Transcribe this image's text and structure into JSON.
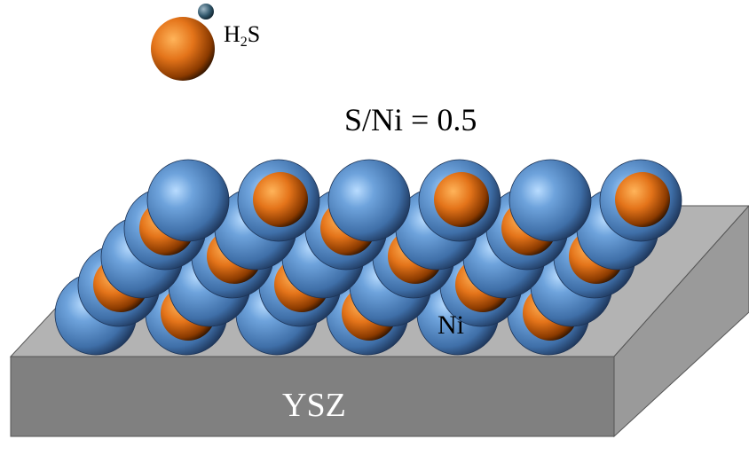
{
  "molecule": {
    "label_main": "H",
    "label_sub": "2",
    "label_tail": "S"
  },
  "coverage_label": "S/Ni = 0.5",
  "atom_label": "Ni",
  "substrate_label": "YSZ",
  "colors": {
    "nickel": "#5b8fcf",
    "sulfur": "#e67a14",
    "substrate_top": "#b3b3b3",
    "substrate_front": "#7f7f7f",
    "substrate_side": "#999999"
  },
  "lattice": {
    "rows": 5,
    "cols": 6,
    "sulfur_pattern": [
      [
        0,
        1,
        0,
        1,
        0,
        1
      ],
      [
        1,
        0,
        1,
        0,
        1,
        0
      ],
      [
        0,
        1,
        0,
        1,
        0,
        1
      ],
      [
        1,
        0,
        1,
        0,
        1,
        0
      ],
      [
        0,
        1,
        0,
        1,
        0,
        1
      ]
    ]
  }
}
